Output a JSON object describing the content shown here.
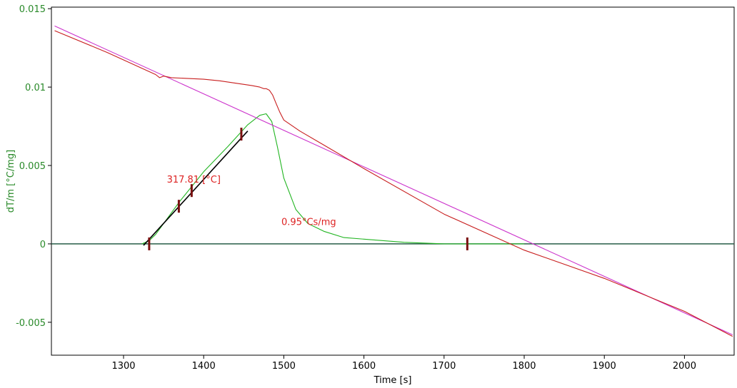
{
  "chart_data": {
    "type": "line",
    "xlabel": "Time [s]",
    "ylabel": "dT/m  [°C/mg]",
    "xlim": [
      1210,
      2062
    ],
    "ylim": [
      -0.0071,
      0.0151
    ],
    "x_ticks": [
      {
        "value": 1300,
        "label": "1300"
      },
      {
        "value": 1400,
        "label": "1400"
      },
      {
        "value": 1500,
        "label": "1500"
      },
      {
        "value": 1600,
        "label": "1600"
      },
      {
        "value": 1700,
        "label": "1700"
      },
      {
        "value": 1800,
        "label": "1800"
      },
      {
        "value": 1900,
        "label": "1900"
      },
      {
        "value": 2000,
        "label": "2000"
      }
    ],
    "y_ticks": [
      {
        "value": 0.015,
        "label": "0.015"
      },
      {
        "value": 0.01,
        "label": "0.01"
      },
      {
        "value": 0.005,
        "label": "0.005"
      },
      {
        "value": 0,
        "label": "0"
      },
      {
        "value": -0.005,
        "label": "-0.005"
      }
    ],
    "grid": false,
    "colors": {
      "axis_text": "#2a8a2a",
      "baseline": "#1b1bb3",
      "green_curve": "#22b522",
      "dark_curve": "#1f5a3a",
      "red_curve": "#c81e1e",
      "magenta_curve": "#cc33cc",
      "tangent": "#000000",
      "marker": "#7a1010",
      "annotation": "#dd2222"
    },
    "series": [
      {
        "key": "baseline",
        "x": [
          1210,
          2062
        ],
        "y": [
          0.0,
          0.0
        ]
      },
      {
        "key": "dark_curve",
        "x": [
          1210,
          1323,
          1400,
          1500,
          1600,
          1700,
          1800,
          1900,
          2000,
          2062
        ],
        "y": [
          0.0,
          0.0,
          0.0,
          0.0,
          0.0,
          0.0,
          0.0,
          0.0,
          0.0,
          0.0
        ]
      },
      {
        "key": "green_curve",
        "x": [
          1323,
          1332,
          1340,
          1350,
          1370,
          1400,
          1430,
          1455,
          1470,
          1478,
          1485,
          1492,
          1500,
          1515,
          1530,
          1550,
          1575,
          1600,
          1650,
          1700,
          1730,
          1800
        ],
        "y": [
          0.0,
          0.0002,
          0.0006,
          0.0013,
          0.0027,
          0.0046,
          0.0062,
          0.0076,
          0.0082,
          0.0083,
          0.0078,
          0.0062,
          0.0042,
          0.0022,
          0.0013,
          0.0008,
          0.0004,
          0.0003,
          0.0001,
          0.0,
          0.0,
          0.0
        ]
      },
      {
        "key": "magenta_curve",
        "x": [
          1214,
          2060
        ],
        "y": [
          0.0139,
          -0.0058
        ]
      },
      {
        "key": "red_curve",
        "x": [
          1214,
          1280,
          1340,
          1345,
          1350,
          1360,
          1400,
          1420,
          1460,
          1470,
          1475,
          1478,
          1482,
          1486,
          1490,
          1495,
          1500,
          1520,
          1550,
          1600,
          1700,
          1800,
          1900,
          2000,
          2060
        ],
        "y": [
          0.0136,
          0.0122,
          0.0108,
          0.0106,
          0.0107,
          0.0106,
          0.0105,
          0.0104,
          0.0101,
          0.01,
          0.0099,
          0.0099,
          0.0098,
          0.0095,
          0.009,
          0.0084,
          0.0079,
          0.0072,
          0.0063,
          0.0048,
          0.0019,
          -0.0004,
          -0.0022,
          -0.0043,
          -0.0059
        ]
      },
      {
        "key": "tangent",
        "x": [
          1325,
          1455
        ],
        "y": [
          -0.0001,
          0.0072
        ]
      }
    ],
    "markers": [
      {
        "x": 1332,
        "y": 0.0
      },
      {
        "x": 1369,
        "y": 0.0024
      },
      {
        "x": 1385,
        "y": 0.0034
      },
      {
        "x": 1447,
        "y": 0.007
      },
      {
        "x": 1729,
        "y": 0.0
      }
    ],
    "annotations": [
      {
        "text": "317.81 [°C]",
        "x": 1354,
        "y": 0.0039
      },
      {
        "text": "0.95°Cs/mg",
        "x": 1497,
        "y": 0.0012
      }
    ]
  }
}
